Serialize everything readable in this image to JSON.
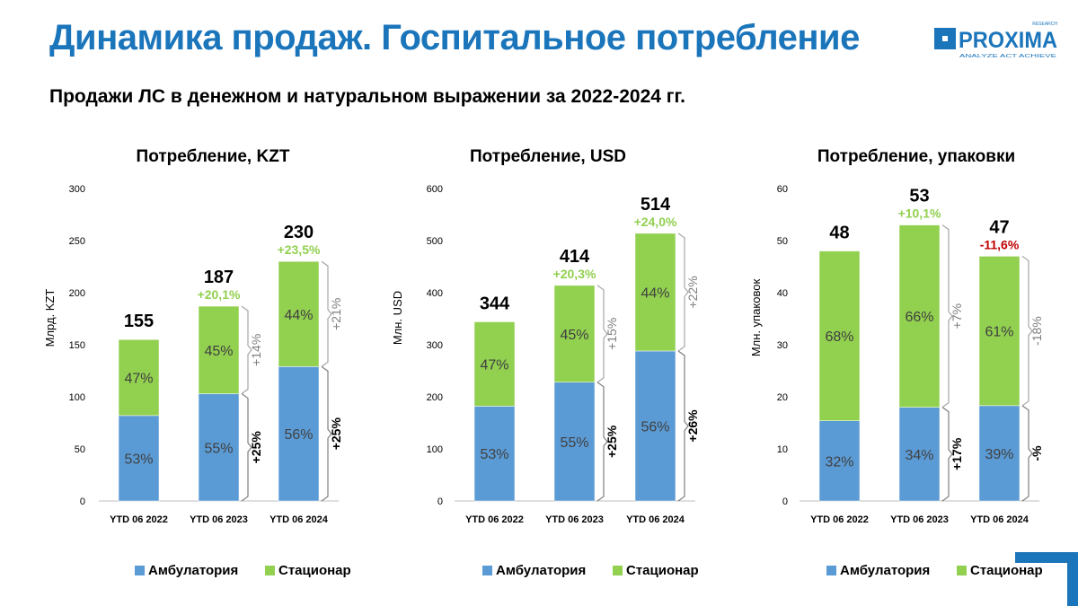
{
  "page": {
    "title": "Динамика продаж. Госпитальное потребление",
    "subtitle": "Продажи ЛС в денежном и натуральном выражении за 2022-2024 гг."
  },
  "logo": {
    "text": "PROXIMA",
    "small_top": "RESEARCH",
    "small_bottom": "ANALYZE  ACT  ACHIEVE"
  },
  "colors": {
    "title": "#1b75bb",
    "ambulatory": "#5b9bd5",
    "inpatient": "#92d050",
    "growth_positive": "#92d050",
    "growth_negative": "#c00000",
    "segment_text": "#404040",
    "bracket_upper": "#7f7f7f",
    "bracket_lower": "#000000"
  },
  "chart_data": [
    {
      "type": "bar",
      "stacked": true,
      "title": "Потребление, KZT",
      "ylabel": "Млрд. KZT",
      "ylim": [
        0,
        300
      ],
      "yticks": [
        0,
        50,
        100,
        150,
        200,
        250,
        300
      ],
      "grid": false,
      "legend_position": "bottom",
      "categories": [
        "YTD 06 2022",
        "YTD 06 2023",
        "YTD 06 2024"
      ],
      "totals": [
        155,
        187,
        230
      ],
      "total_labels": [
        "155",
        "187",
        "230"
      ],
      "growth_labels": [
        "",
        "+20,1%",
        "+23,5%"
      ],
      "series": [
        {
          "name": "Амбулатория",
          "color_key": "ambulatory",
          "values": [
            82,
            103,
            129
          ],
          "labels": [
            "53%",
            "55%",
            "56%"
          ]
        },
        {
          "name": "Стационар",
          "color_key": "inpatient",
          "values": [
            73,
            84,
            101
          ],
          "labels": [
            "47%",
            "45%",
            "44%"
          ]
        }
      ],
      "brackets": [
        {
          "after_index": 1,
          "upper_label": "+14%",
          "lower_label": "+25%"
        },
        {
          "after_index": 2,
          "upper_label": "+21%",
          "lower_label": "+25%"
        }
      ]
    },
    {
      "type": "bar",
      "stacked": true,
      "title": "Потребление, USD",
      "ylabel": "Млн. USD",
      "ylim": [
        0,
        600
      ],
      "yticks": [
        0,
        100,
        200,
        300,
        400,
        500,
        600
      ],
      "grid": false,
      "legend_position": "bottom",
      "categories": [
        "YTD 06 2022",
        "YTD 06 2023",
        "YTD 06 2024"
      ],
      "totals": [
        344,
        414,
        514
      ],
      "total_labels": [
        "344",
        "414",
        "514"
      ],
      "growth_labels": [
        "",
        "+20,3%",
        "+24,0%"
      ],
      "series": [
        {
          "name": "Амбулатория",
          "color_key": "ambulatory",
          "values": [
            182,
            228,
            288
          ],
          "labels": [
            "53%",
            "55%",
            "56%"
          ]
        },
        {
          "name": "Стационар",
          "color_key": "inpatient",
          "values": [
            162,
            186,
            226
          ],
          "labels": [
            "47%",
            "45%",
            "44%"
          ]
        }
      ],
      "brackets": [
        {
          "after_index": 1,
          "upper_label": "+15%",
          "lower_label": "+25%"
        },
        {
          "after_index": 2,
          "upper_label": "+22%",
          "lower_label": "+26%"
        }
      ]
    },
    {
      "type": "bar",
      "stacked": true,
      "title": "Потребление, упаковки",
      "ylabel": "Млн. упаковок",
      "ylim": [
        0,
        60
      ],
      "yticks": [
        0,
        10,
        20,
        30,
        40,
        50,
        60
      ],
      "grid": false,
      "legend_position": "bottom",
      "categories": [
        "YTD 06 2022",
        "YTD 06 2023",
        "YTD 06 2024"
      ],
      "totals": [
        48,
        53,
        47
      ],
      "total_labels": [
        "48",
        "53",
        "47"
      ],
      "growth_labels": [
        "",
        "+10,1%",
        "-11,6%"
      ],
      "series": [
        {
          "name": "Амбулатория",
          "color_key": "ambulatory",
          "values": [
            15.4,
            18.0,
            18.3
          ],
          "labels": [
            "32%",
            "34%",
            "39%"
          ]
        },
        {
          "name": "Стационар",
          "color_key": "inpatient",
          "values": [
            32.6,
            35.0,
            28.7
          ],
          "labels": [
            "68%",
            "66%",
            "61%"
          ]
        }
      ],
      "brackets": [
        {
          "after_index": 1,
          "upper_label": "+7%",
          "lower_label": "+17%"
        },
        {
          "after_index": 2,
          "upper_label": "-18%",
          "lower_label": "-%"
        }
      ]
    }
  ]
}
